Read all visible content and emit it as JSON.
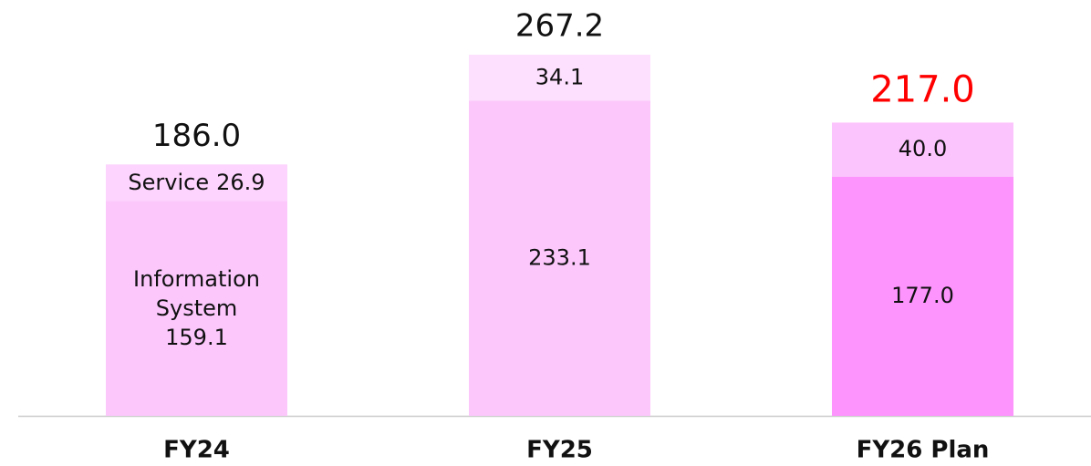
{
  "chart_data": {
    "type": "stacked_bar",
    "categories": [
      "FY24",
      "FY25",
      "FY26 Plan"
    ],
    "series": [
      {
        "name": "Information System",
        "colors": [
          "#fcc8fc",
          "#fcc8fc",
          "#fd93fd"
        ],
        "values": [
          159.1,
          233.1,
          177
        ],
        "value_labels": [
          "159.1",
          "233.1",
          "177.0"
        ]
      },
      {
        "name": "Service",
        "colors": [
          "#fdd4fd",
          "#fde0fd",
          "#fcc4fc"
        ],
        "values": [
          26.9,
          34.1,
          40
        ],
        "value_labels": [
          "26.9",
          "34.1",
          "40.0"
        ]
      }
    ],
    "totals": [
      186,
      267.2,
      217
    ],
    "total_labels": [
      "186.0",
      "267.2",
      "217.0"
    ],
    "total_colors": [
      "#111111",
      "#111111",
      "#ff0000"
    ]
  }
}
